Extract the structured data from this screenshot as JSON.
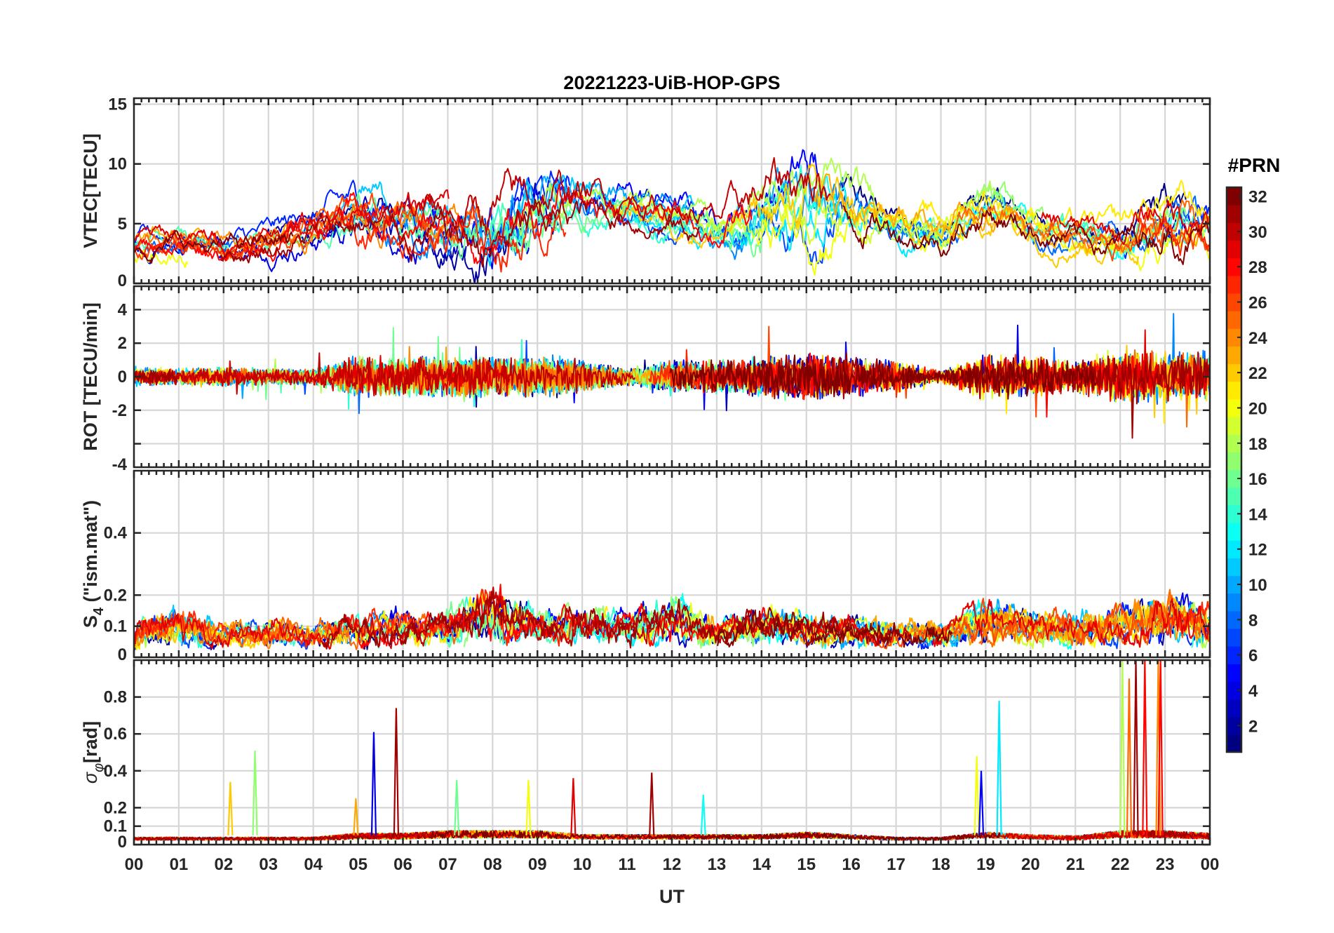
{
  "chart_data": {
    "type": "line",
    "title": "20221223-UiB-HOP-GPS",
    "xlabel": "UT",
    "x_ticks": [
      "00",
      "01",
      "02",
      "03",
      "04",
      "05",
      "06",
      "07",
      "08",
      "09",
      "10",
      "11",
      "12",
      "13",
      "14",
      "15",
      "16",
      "17",
      "18",
      "19",
      "20",
      "21",
      "22",
      "23",
      "00"
    ],
    "x_range_hours": [
      0,
      24
    ],
    "grid": true,
    "colorbar": {
      "title": "#PRN",
      "colormap": "jet",
      "range": [
        1,
        32
      ],
      "ticks": [
        "2",
        "4",
        "6",
        "8",
        "10",
        "12",
        "14",
        "16",
        "18",
        "20",
        "22",
        "24",
        "26",
        "28",
        "30",
        "32"
      ]
    },
    "series_note": "one trace per GPS satellite PRN 1-32, colored by PRN",
    "panels": [
      {
        "id": "vtec",
        "ylabel": "VTEC[TECU]",
        "ylim": [
          0,
          15.5
        ],
        "yticks": [
          0,
          5,
          10,
          15
        ],
        "ytick_labels": [
          "0",
          "5",
          "10",
          "15"
        ],
        "envelope": {
          "x": [
            0,
            1,
            2,
            3,
            4,
            5,
            6,
            7,
            8,
            9,
            10,
            11,
            12,
            13,
            14,
            15,
            16,
            17,
            18,
            19,
            20,
            21,
            22,
            23,
            24
          ],
          "base": [
            3.2,
            3.5,
            3.0,
            3.6,
            4.8,
            6.0,
            5.2,
            4.8,
            4.5,
            6.0,
            6.8,
            6.5,
            5.8,
            4.5,
            6.0,
            7.5,
            6.5,
            5.0,
            4.0,
            6.5,
            5.0,
            4.0,
            3.5,
            5.5,
            4.5
          ],
          "spread": [
            1.5,
            1.5,
            1.5,
            1.6,
            2.0,
            2.5,
            2.5,
            3.0,
            4.0,
            3.5,
            2.5,
            2.0,
            2.0,
            2.0,
            3.5,
            4.5,
            3.0,
            2.0,
            2.0,
            2.5,
            2.0,
            1.8,
            2.0,
            3.0,
            2.5
          ]
        }
      },
      {
        "id": "rot",
        "ylabel": "ROT [TECU/min]",
        "ylim": [
          -5.4,
          5.4
        ],
        "yticks": [
          -4,
          -2,
          0,
          2,
          4
        ],
        "ytick_labels": [
          "-4",
          "-2",
          "0",
          "2",
          "4"
        ],
        "envelope": {
          "x": [
            0,
            1,
            2,
            3,
            4,
            5,
            6,
            7,
            8,
            9,
            10,
            11,
            12,
            13,
            14,
            15,
            16,
            17,
            18,
            19,
            20,
            21,
            22,
            23,
            24
          ],
          "base": [
            0,
            0,
            0,
            0,
            0,
            0,
            0,
            0,
            0,
            0,
            0,
            0,
            0,
            0,
            0,
            0,
            0,
            0,
            0,
            0,
            0,
            0,
            0,
            0,
            0
          ],
          "spread": [
            0.5,
            0.4,
            0.5,
            0.4,
            0.4,
            1.0,
            1.0,
            1.0,
            1.0,
            1.0,
            0.8,
            0.4,
            0.8,
            0.8,
            1.0,
            1.2,
            1.0,
            0.8,
            0.3,
            1.2,
            1.0,
            0.8,
            1.3,
            1.3,
            1.2
          ]
        }
      },
      {
        "id": "s4",
        "ylabel": "S4 (\"ism.mat\")",
        "ylabel_main": "S",
        "ylabel_sub": "4",
        "ylabel_rest": " (\"ism.mat\")",
        "ylim": [
          0,
          0.6
        ],
        "yticks": [
          0,
          0.1,
          0.2,
          0.4
        ],
        "ytick_labels": [
          "0",
          "0.1",
          "0.2",
          "0.4"
        ],
        "envelope": {
          "x": [
            0,
            1,
            2,
            3,
            4,
            5,
            6,
            7,
            8,
            9,
            10,
            11,
            12,
            13,
            14,
            15,
            16,
            17,
            18,
            19,
            20,
            21,
            22,
            23,
            24
          ],
          "base": [
            0.05,
            0.05,
            0.04,
            0.04,
            0.05,
            0.05,
            0.05,
            0.06,
            0.08,
            0.06,
            0.06,
            0.06,
            0.07,
            0.05,
            0.06,
            0.06,
            0.05,
            0.05,
            0.05,
            0.07,
            0.05,
            0.05,
            0.05,
            0.07,
            0.05
          ],
          "spread": [
            0.12,
            0.13,
            0.08,
            0.1,
            0.08,
            0.12,
            0.12,
            0.12,
            0.22,
            0.12,
            0.14,
            0.14,
            0.18,
            0.1,
            0.14,
            0.12,
            0.1,
            0.09,
            0.08,
            0.18,
            0.12,
            0.12,
            0.14,
            0.2,
            0.14
          ]
        }
      },
      {
        "id": "sigma_phi",
        "ylabel": "σφ[rad]",
        "ylabel_main": "σ",
        "ylabel_sub": "φ",
        "ylabel_rest": "[rad]",
        "ylim": [
          0,
          1.0
        ],
        "yticks": [
          0,
          0.1,
          0.2,
          0.4,
          0.6,
          0.8
        ],
        "ytick_labels": [
          "0",
          "0.1",
          "0.2",
          "0.4",
          "0.6",
          "0.8"
        ],
        "envelope": {
          "x": [
            0,
            1,
            2,
            3,
            4,
            5,
            6,
            7,
            8,
            9,
            10,
            11,
            12,
            13,
            14,
            15,
            16,
            17,
            18,
            19,
            20,
            21,
            22,
            23,
            24
          ],
          "base": [
            0.04,
            0.04,
            0.04,
            0.04,
            0.04,
            0.05,
            0.05,
            0.06,
            0.06,
            0.06,
            0.05,
            0.05,
            0.05,
            0.05,
            0.05,
            0.06,
            0.05,
            0.04,
            0.04,
            0.06,
            0.05,
            0.04,
            0.06,
            0.06,
            0.05
          ],
          "spread": [
            0.02,
            0.02,
            0.02,
            0.02,
            0.02,
            0.04,
            0.04,
            0.05,
            0.05,
            0.05,
            0.03,
            0.03,
            0.03,
            0.03,
            0.03,
            0.04,
            0.03,
            0.02,
            0.02,
            0.04,
            0.03,
            0.03,
            0.05,
            0.05,
            0.04
          ]
        },
        "spikes": [
          {
            "t": 2.15,
            "v": 0.34,
            "prn": 22
          },
          {
            "t": 2.7,
            "v": 0.51,
            "prn": 17
          },
          {
            "t": 4.95,
            "v": 0.25,
            "prn": 23
          },
          {
            "t": 5.35,
            "v": 0.61,
            "prn": 4
          },
          {
            "t": 5.85,
            "v": 0.74,
            "prn": 31
          },
          {
            "t": 7.2,
            "v": 0.35,
            "prn": 16
          },
          {
            "t": 8.8,
            "v": 0.35,
            "prn": 20
          },
          {
            "t": 9.8,
            "v": 0.36,
            "prn": 29
          },
          {
            "t": 11.55,
            "v": 0.39,
            "prn": 31
          },
          {
            "t": 12.7,
            "v": 0.27,
            "prn": 13
          },
          {
            "t": 18.8,
            "v": 0.48,
            "prn": 20
          },
          {
            "t": 18.9,
            "v": 0.4,
            "prn": 5
          },
          {
            "t": 19.3,
            "v": 0.78,
            "prn": 12
          },
          {
            "t": 22.05,
            "v": 1.0,
            "prn": 18
          },
          {
            "t": 22.2,
            "v": 0.9,
            "prn": 25
          },
          {
            "t": 22.35,
            "v": 1.0,
            "prn": 31
          },
          {
            "t": 22.55,
            "v": 1.0,
            "prn": 28
          },
          {
            "t": 22.85,
            "v": 1.0,
            "prn": 24
          },
          {
            "t": 22.9,
            "v": 1.0,
            "prn": 28
          }
        ]
      }
    ]
  }
}
